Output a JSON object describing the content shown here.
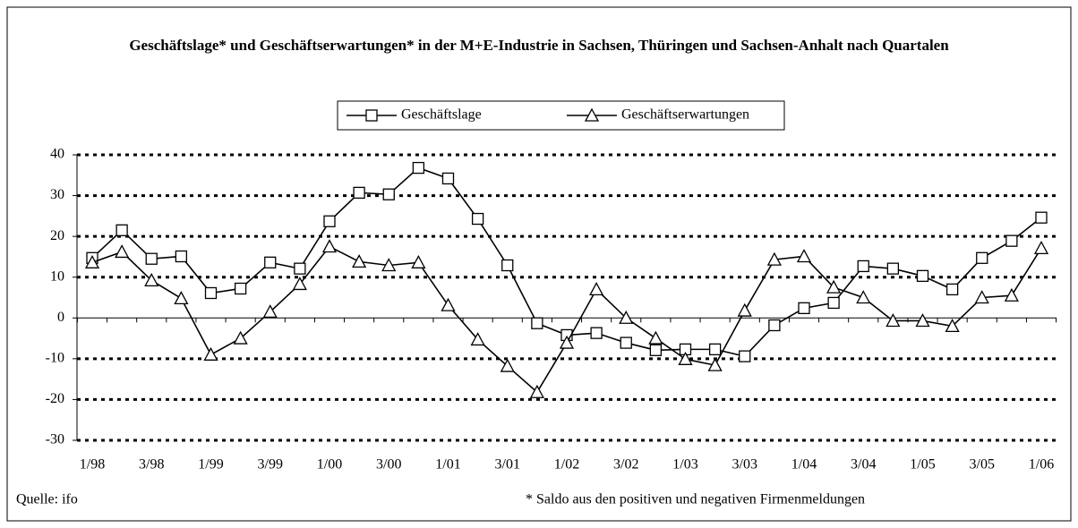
{
  "chart_data": {
    "type": "line",
    "title": "Geschäftslage* und Geschäftserwartungen* in der M+E-Industrie in Sachsen, Thüringen und Sachsen-Anhalt nach Quartalen",
    "categories": [
      "1/98",
      null,
      "3/98",
      null,
      "1/99",
      null,
      "3/99",
      null,
      "1/00",
      null,
      "3/00",
      null,
      "1/01",
      null,
      "3/01",
      null,
      "1/02",
      null,
      "3/02",
      null,
      "1/03",
      null,
      "3/03",
      null,
      "1/04",
      null,
      "3/04",
      null,
      "1/05",
      null,
      "3/05",
      null,
      "1/06"
    ],
    "series": [
      {
        "name": "Geschäftslage",
        "color": "#000000",
        "marker": "square",
        "values": [
          14.7,
          21.5,
          14.5,
          15.1,
          6.1,
          7.2,
          13.6,
          12.1,
          23.7,
          30.7,
          30.3,
          36.8,
          34.2,
          24.3,
          12.9,
          -1.3,
          -4.2,
          -3.7,
          -6.1,
          -7.9,
          -7.7,
          -7.7,
          -9.4,
          -1.8,
          2.4,
          3.7,
          12.7,
          12.1,
          10.3,
          7.0,
          14.7,
          18.9,
          24.6
        ]
      },
      {
        "name": "Geschäftserwartungen",
        "color": "#000000",
        "marker": "triangle",
        "values": [
          13.6,
          16.2,
          9.2,
          4.8,
          -9.0,
          -5.0,
          1.5,
          8.3,
          17.5,
          13.8,
          12.9,
          13.6,
          3.1,
          -5.3,
          -11.8,
          -18.2,
          -6.1,
          7.0,
          0,
          -5.0,
          -10.1,
          -11.6,
          1.8,
          14.3,
          15.1,
          7.5,
          5.0,
          -0.7,
          -0.7,
          -2.0,
          5.0,
          5.5,
          17.1
        ]
      }
    ],
    "ylim": [
      -30,
      40
    ],
    "yticks": [
      -30,
      -20,
      -10,
      0,
      10,
      20,
      30,
      40
    ],
    "grid": true,
    "legend": "top",
    "source": "Quelle: ifo",
    "footnote": "* Saldo aus den positiven und negativen Firmenmeldungen"
  }
}
